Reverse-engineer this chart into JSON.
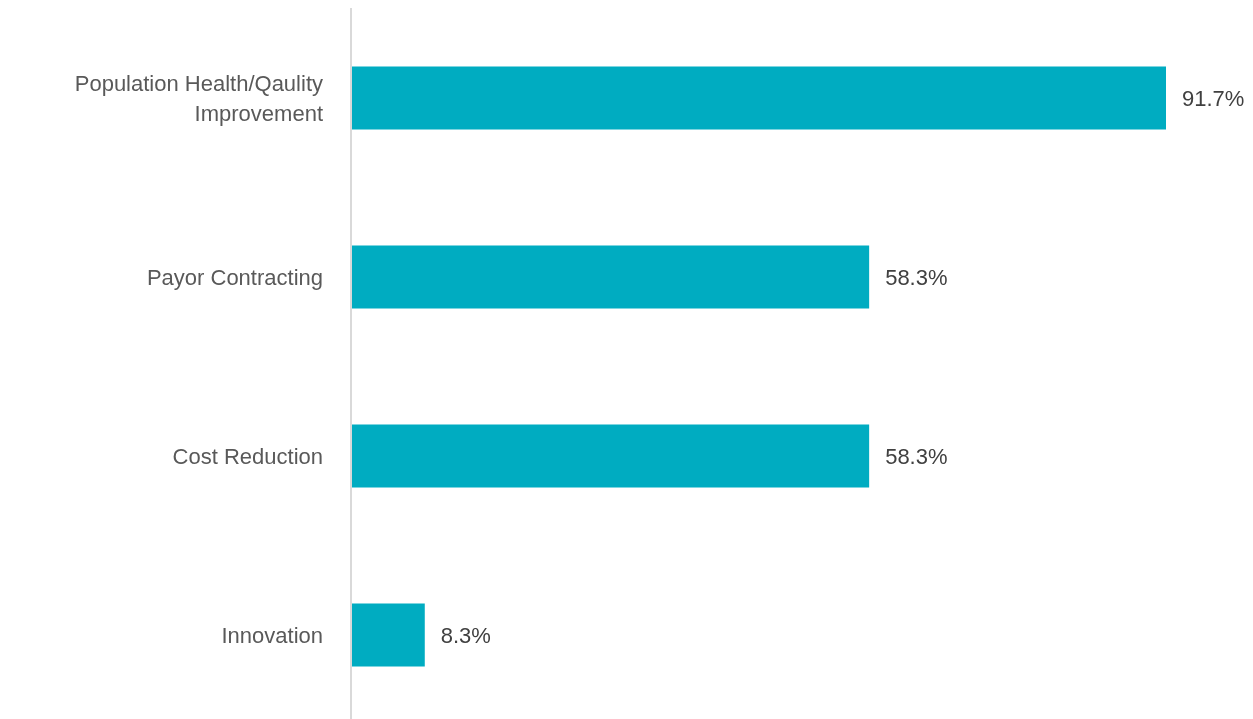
{
  "chart_data": {
    "type": "bar",
    "orientation": "horizontal",
    "categories": [
      "Population Health/Qaulity Improvement",
      "Payor Contracting",
      "Cost Reduction",
      "Innovation"
    ],
    "values": [
      91.7,
      58.3,
      58.3,
      8.3
    ],
    "value_labels": [
      "91.7%",
      "58.3%",
      "58.3%",
      "8.3%"
    ],
    "color": "#00acc1",
    "tick_labels": "y"
  }
}
